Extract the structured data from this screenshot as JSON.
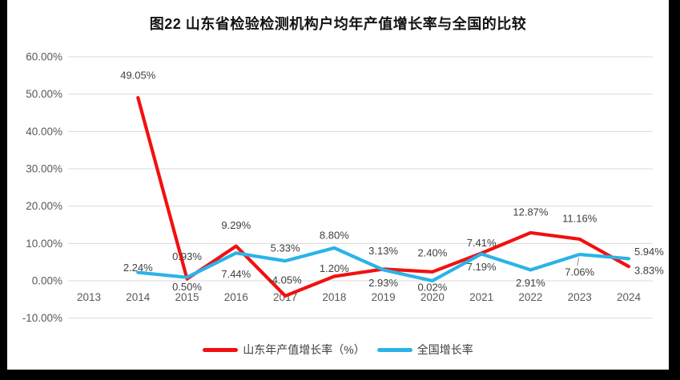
{
  "window": {
    "background": "#FFFFFF",
    "edge_color": "#000000"
  },
  "chart_data": {
    "type": "line",
    "title": "图22 山东省检验检测机构户均年产值增长率与全国的比较",
    "categories": [
      "2013",
      "2014",
      "2015",
      "2016",
      "2017",
      "2018",
      "2019",
      "2020",
      "2021",
      "2022",
      "2023",
      "2024"
    ],
    "grid": true,
    "grid_color": "#D9D9D9",
    "axis_text_color": "#595959",
    "label_text_color": "#3F3F3F",
    "legend_position": "bottom",
    "y_axis": {
      "min": -10,
      "max": 60,
      "step": 10,
      "tick_values": [
        60,
        50,
        40,
        30,
        20,
        10,
        0,
        -10
      ],
      "tick_labels": [
        "60.00%",
        "50.00%",
        "40.00%",
        "30.00%",
        "20.00%",
        "10.00%",
        "0.00%",
        "-10.00%"
      ]
    },
    "series": [
      {
        "name": "山东年产值增长率（%）",
        "color": "#F21010",
        "values": [
          null,
          49.05,
          0.5,
          9.29,
          -4.05,
          1.2,
          3.13,
          2.4,
          7.41,
          12.87,
          11.16,
          3.83
        ],
        "labels": [
          null,
          "49.05%",
          "0.50%",
          "9.29%",
          "-4.05%",
          "1.20%",
          "3.13%",
          "2.40%",
          "7.41%",
          "12.87%",
          "11.16%",
          "3.83%"
        ],
        "label_pos": [
          null,
          "above",
          "below",
          "above",
          "above",
          "above",
          "above",
          "above",
          "above",
          "above",
          "above",
          "right"
        ],
        "label_dy": [
          null,
          -12,
          -6,
          -10,
          -4,
          6,
          -7,
          -8,
          3,
          -10,
          -10,
          5
        ]
      },
      {
        "name": "全国增长率",
        "color": "#2BB3E8",
        "values": [
          null,
          2.24,
          0.93,
          7.44,
          5.33,
          8.8,
          2.93,
          0.02,
          7.19,
          2.91,
          7.06,
          5.94
        ],
        "labels": [
          null,
          "2.24%",
          "0.93%",
          "7.44%",
          "5.33%",
          "8.80%",
          "2.93%",
          "0.02%",
          "7.19%",
          "2.91%",
          "7.06%",
          "5.94%"
        ],
        "label_pos": [
          null,
          "above",
          "above",
          "below",
          "above",
          "above",
          "below",
          "below",
          "below",
          "below",
          "below",
          "right"
        ],
        "label_dy": [
          null,
          10,
          -10,
          10,
          0,
          0,
          0,
          -8,
          0,
          0,
          6,
          -9
        ]
      }
    ],
    "leader": {
      "series": 1,
      "index": 10
    }
  }
}
